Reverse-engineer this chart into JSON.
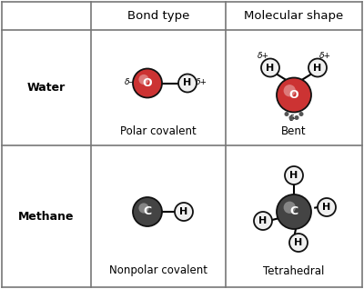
{
  "col_headers": [
    "Bond type",
    "Molecular shape"
  ],
  "row_headers": [
    "Water",
    "Methane"
  ],
  "background": "#ffffff",
  "grid_color": "#777777",
  "header_fontsize": 9.5,
  "row_label_fontsize": 9,
  "caption_fontsize": 8.5,
  "water_O_color": "#cc3333",
  "water_O_edge": "#111111",
  "water_H_color": "#f0f0f0",
  "water_H_edge": "#111111",
  "carbon_color": "#444444",
  "carbon_edge": "#111111",
  "methane_H_color": "#f0f0f0",
  "methane_H_edge": "#111111",
  "lone_pair_color": "#555555",
  "col0": 2,
  "col1": 100,
  "col2": 248,
  "col3": 398,
  "row0": 316,
  "row1": 285,
  "row2": 158,
  "row3": 2
}
